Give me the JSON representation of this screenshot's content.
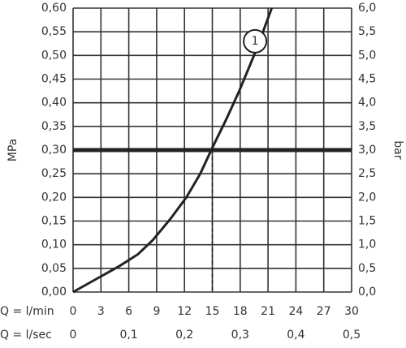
{
  "chart_data": {
    "type": "line",
    "ylabel": "MPa",
    "y2label": "bar",
    "xlabel": "Q = l/min",
    "x2label": "Q = l/sec",
    "xlim": [
      0,
      30
    ],
    "xticks": [
      0,
      3,
      6,
      9,
      12,
      15,
      18,
      21,
      24,
      27,
      30
    ],
    "x2lim": [
      0,
      0.5
    ],
    "x2ticks": [
      0,
      {
        "value": 0.1,
        "label": "0,1"
      },
      {
        "value": 0.2,
        "label": "0,2"
      },
      {
        "value": 0.3,
        "label": "0,3"
      },
      {
        "value": 0.4,
        "label": "0,4"
      },
      {
        "value": 0.5,
        "label": "0,5"
      }
    ],
    "ylim": [
      0,
      0.6
    ],
    "yticks": [
      {
        "value": 0,
        "label": "0,00"
      },
      {
        "value": 0.05,
        "label": "0,05"
      },
      {
        "value": 0.1,
        "label": "0,10"
      },
      {
        "value": 0.15,
        "label": "0,15"
      },
      {
        "value": 0.2,
        "label": "0,20"
      },
      {
        "value": 0.25,
        "label": "0,25"
      },
      {
        "value": 0.3,
        "label": "0,30"
      },
      {
        "value": 0.35,
        "label": "0,35"
      },
      {
        "value": 0.4,
        "label": "0,40"
      },
      {
        "value": 0.45,
        "label": "0,45"
      },
      {
        "value": 0.5,
        "label": "0,50"
      },
      {
        "value": 0.55,
        "label": "0,55"
      },
      {
        "value": 0.6,
        "label": "0,60"
      }
    ],
    "y2lim": [
      0,
      6
    ],
    "y2ticks": [
      {
        "value": 0,
        "label": "0,0"
      },
      {
        "value": 0.5,
        "label": "0,5"
      },
      {
        "value": 1,
        "label": "1,0"
      },
      {
        "value": 1.5,
        "label": "1,5"
      },
      {
        "value": 2,
        "label": "2,0"
      },
      {
        "value": 2.5,
        "label": "2,5"
      },
      {
        "value": 3,
        "label": "3,0"
      },
      {
        "value": 3.5,
        "label": "3,5"
      },
      {
        "value": 4,
        "label": "4,0"
      },
      {
        "value": 4.5,
        "label": "4,5"
      },
      {
        "value": 5,
        "label": "5,0"
      },
      {
        "value": 5.5,
        "label": "5,5"
      },
      {
        "value": 6,
        "label": "6,0"
      }
    ],
    "grid": true,
    "series": [
      {
        "color": "#222222",
        "x": [
          0,
          3,
          5,
          7,
          8.6,
          10.5,
          12.2,
          13.7,
          15,
          16.5,
          17.9,
          19.7,
          21.4
        ],
        "values": [
          0,
          0.033,
          0.055,
          0.08,
          0.11,
          0.155,
          0.2,
          0.25,
          0.305,
          0.365,
          0.425,
          0.51,
          0.6
        ]
      }
    ],
    "reference_line": {
      "y": 0.3,
      "x": 15
    },
    "annotations": [
      {
        "text": "1",
        "x": 19.6,
        "y": 0.53
      }
    ]
  }
}
